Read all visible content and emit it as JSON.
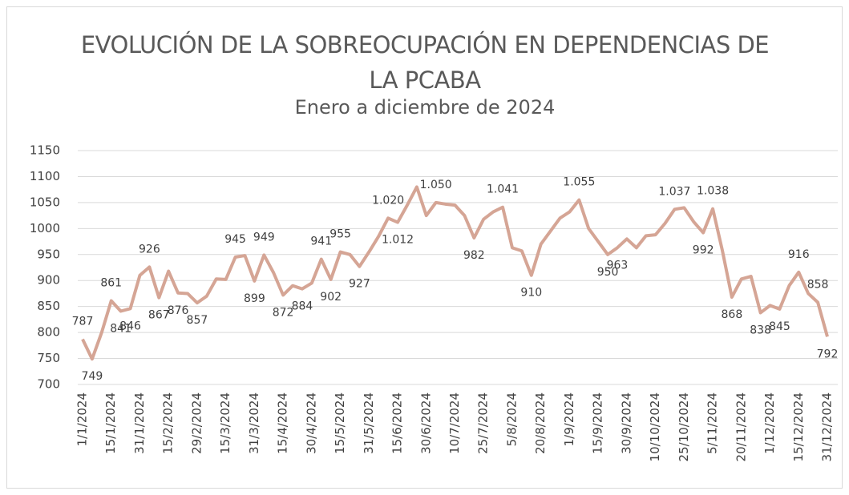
{
  "chart_data": {
    "type": "line",
    "title": "EVOLUCIÓN DE LA SOBREOCUPACIÓN EN DEPENDENCIAS DE LA PCABA",
    "subtitle": "Enero a diciembre de 2024",
    "categories": [
      "1/1/2024",
      null,
      null,
      "15/1/2024",
      null,
      null,
      "31/1/2024",
      null,
      null,
      "15/2/2024",
      null,
      null,
      "29/2/2024",
      null,
      null,
      "15/3/2024",
      null,
      null,
      "31/3/2024",
      null,
      null,
      "15/4/2024",
      null,
      null,
      "30/4/2024",
      null,
      null,
      "15/5/2024",
      null,
      null,
      "31/5/2024",
      null,
      null,
      "15/6/2024",
      null,
      null,
      "30/6/2024",
      null,
      null,
      "10/7/2024",
      null,
      null,
      "25/7/2024",
      null,
      null,
      "5/8/2024",
      null,
      null,
      "20/8/2024",
      null,
      null,
      "1/9/2024",
      null,
      null,
      "15/9/2024",
      null,
      null,
      "30/9/2024",
      null,
      null,
      "10/10/2024",
      null,
      null,
      "25/10/2024",
      null,
      null,
      "5/11/2024",
      null,
      null,
      "20/11/2024",
      null,
      null,
      "1/12/2024",
      null,
      null,
      "15/12/2024",
      null,
      null,
      "31/12/2024"
    ],
    "series": [
      {
        "name": "Sobreocupación",
        "color": "#d5a595",
        "values": [
          787,
          749,
          800,
          861,
          841,
          846,
          910,
          926,
          867,
          918,
          876,
          875,
          857,
          870,
          903,
          902,
          945,
          948,
          899,
          949,
          915,
          872,
          890,
          884,
          895,
          941,
          902,
          955,
          950,
          927,
          955,
          985,
          1020,
          1012,
          1045,
          1080,
          1025,
          1050,
          1047,
          1045,
          1025,
          982,
          1018,
          1032,
          1041,
          963,
          957,
          910,
          970,
          995,
          1020,
          1032,
          1055,
          1000,
          975,
          950,
          963,
          980,
          963,
          986,
          988,
          1010,
          1037,
          1040,
          1013,
          992,
          1038,
          958,
          868,
          903,
          908,
          838,
          852,
          845,
          890,
          916,
          875,
          858,
          792
        ],
        "value_labels": [
          "787",
          "749",
          null,
          "861",
          "841",
          "846",
          null,
          "926",
          "867",
          null,
          "876",
          null,
          "857",
          null,
          null,
          null,
          "945",
          null,
          "899",
          "949",
          null,
          "872",
          null,
          "884",
          null,
          "941",
          "902",
          "955",
          null,
          "927",
          null,
          null,
          "1.020",
          "1.012",
          null,
          null,
          null,
          "1.050",
          null,
          null,
          null,
          "982",
          null,
          null,
          "1.041",
          null,
          null,
          "910",
          null,
          null,
          null,
          null,
          "1.055",
          null,
          null,
          "950",
          "963",
          null,
          null,
          null,
          null,
          null,
          "1.037",
          null,
          null,
          "992",
          "1.038",
          null,
          "868",
          null,
          null,
          "838",
          null,
          "845",
          null,
          "916",
          null,
          "858",
          "792"
        ]
      }
    ],
    "ylim": [
      700,
      1150
    ],
    "yticks": [
      700,
      750,
      800,
      850,
      900,
      950,
      1000,
      1050,
      1100,
      1150
    ],
    "grid": true
  }
}
